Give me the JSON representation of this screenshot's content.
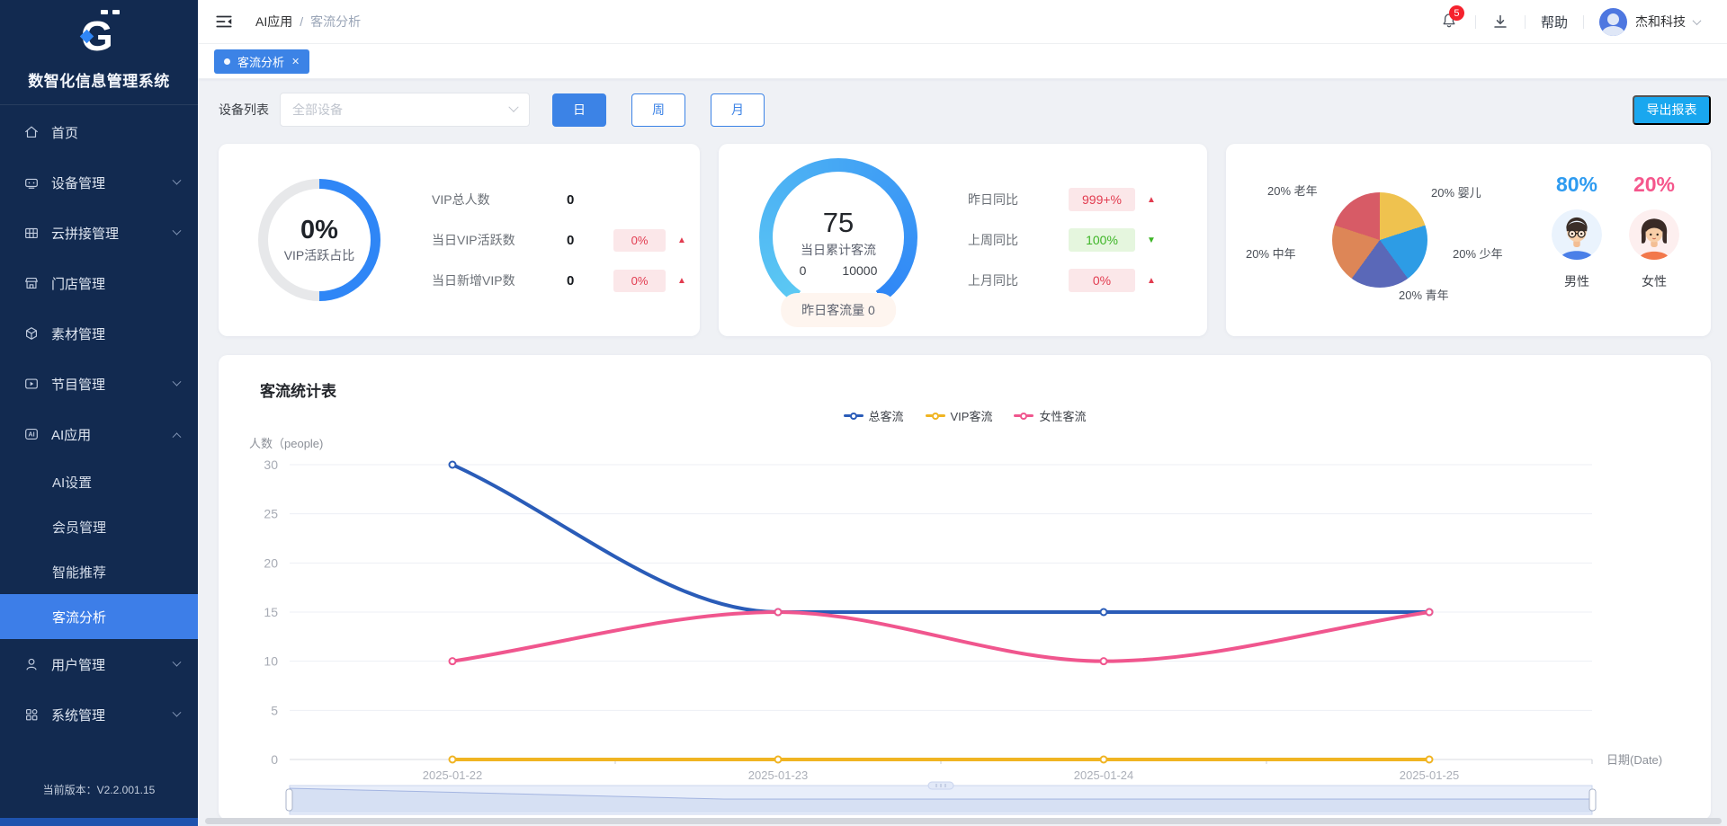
{
  "app": {
    "name": "数智化信息管理系统",
    "version": "当前版本：V2.2.001.15"
  },
  "sidebar": {
    "items": [
      {
        "label": "首页",
        "icon": "home-icon"
      },
      {
        "label": "设备管理",
        "icon": "device-icon",
        "chevron": "down"
      },
      {
        "label": "云拼接管理",
        "icon": "splice-grid-icon",
        "chevron": "down"
      },
      {
        "label": "门店管理",
        "icon": "store-icon"
      },
      {
        "label": "素材管理",
        "icon": "material-box-icon"
      },
      {
        "label": "节目管理",
        "icon": "program-icon",
        "chevron": "down"
      },
      {
        "label": "AI应用",
        "icon": "ai-icon",
        "chevron": "up"
      },
      {
        "label": "AI设置",
        "sub": true
      },
      {
        "label": "会员管理",
        "sub": true
      },
      {
        "label": "智能推荐",
        "sub": true
      },
      {
        "label": "客流分析",
        "sub": true,
        "active": true
      },
      {
        "label": "用户管理",
        "icon": "user-icon",
        "chevron": "down"
      },
      {
        "label": "系统管理",
        "icon": "system-icon",
        "chevron": "down"
      }
    ]
  },
  "header": {
    "breadcrumb": {
      "parent": "AI应用",
      "separator": "/",
      "current": "客流分析"
    },
    "notification_count": "5",
    "help": "帮助",
    "username": "杰和科技"
  },
  "tabs": {
    "active": "客流分析",
    "close_glyph": "✕"
  },
  "filters": {
    "device_label": "设备列表",
    "device_placeholder": "全部设备",
    "periods": [
      "日",
      "周",
      "月"
    ],
    "active_period": "日",
    "export": "导出报表"
  },
  "cards": {
    "vip": {
      "rows": [
        {
          "label": "VIP总人数",
          "value": "0"
        },
        {
          "label": "当日VIP活跃数",
          "value": "0",
          "badge": "0%",
          "trend": "up",
          "tone": "red"
        },
        {
          "label": "当日新增VIP数",
          "value": "0",
          "badge": "0%",
          "trend": "up",
          "tone": "red"
        }
      ]
    },
    "flow": {
      "pill": "昨日客流量 0",
      "rows": [
        {
          "label": "昨日同比",
          "badge": "999+%",
          "trend": "up",
          "tone": "red"
        },
        {
          "label": "上周同比",
          "badge": "100%",
          "trend": "down",
          "tone": "green"
        },
        {
          "label": "上月同比",
          "badge": "0%",
          "trend": "up",
          "tone": "red"
        }
      ]
    },
    "gender": {
      "male": {
        "percent": "80%",
        "label": "男性",
        "color": "#2E9BF0"
      },
      "female": {
        "percent": "20%",
        "label": "女性",
        "color": "#F5568C"
      }
    }
  },
  "chart_data": [
    {
      "type": "donut",
      "name": "VIP活跃占比",
      "value_text": "0%",
      "visual_fraction": 0.5,
      "colors": {
        "active": "#2F86F6",
        "rest": "#E7E8EA"
      }
    },
    {
      "type": "gauge",
      "name": "当日累计客流",
      "value": 75,
      "min": 0,
      "max": 10000,
      "arc": {
        "start_deg": 215,
        "sweep_deg": 290
      },
      "colors": {
        "from": "#5CC9F3",
        "to": "#2F86F6"
      }
    },
    {
      "type": "pie",
      "name": "年龄分布",
      "slices": [
        {
          "label": "婴儿",
          "pct": 20,
          "color": "#EFC24F",
          "anno": "20% 婴儿"
        },
        {
          "label": "少年",
          "pct": 20,
          "color": "#2D9CE5",
          "anno": "20% 少年"
        },
        {
          "label": "青年",
          "pct": 20,
          "color": "#5A68B8",
          "anno": "20% 青年"
        },
        {
          "label": "中年",
          "pct": 20,
          "color": "#DD8657",
          "anno": "20% 中年"
        },
        {
          "label": "老年",
          "pct": 20,
          "color": "#D75B66",
          "anno": "20% 老年"
        }
      ]
    },
    {
      "type": "line",
      "title": "客流统计表",
      "ylabel": "人数（people)",
      "xlabel": "日期(Date)",
      "categories": [
        "2025-01-22",
        "2025-01-23",
        "2025-01-24",
        "2025-01-25"
      ],
      "ylim": [
        0,
        30
      ],
      "ytick_step": 5,
      "grid": true,
      "smooth": true,
      "legend_position": "top",
      "series": [
        {
          "name": "总客流",
          "color": "#2A5CB8",
          "values": [
            30,
            15,
            15,
            15
          ]
        },
        {
          "name": "VIP客流",
          "color": "#F0B422",
          "values": [
            0,
            0,
            0,
            0
          ]
        },
        {
          "name": "女性客流",
          "color": "#F0568E",
          "values": [
            10,
            15,
            10,
            15
          ]
        }
      ]
    }
  ]
}
